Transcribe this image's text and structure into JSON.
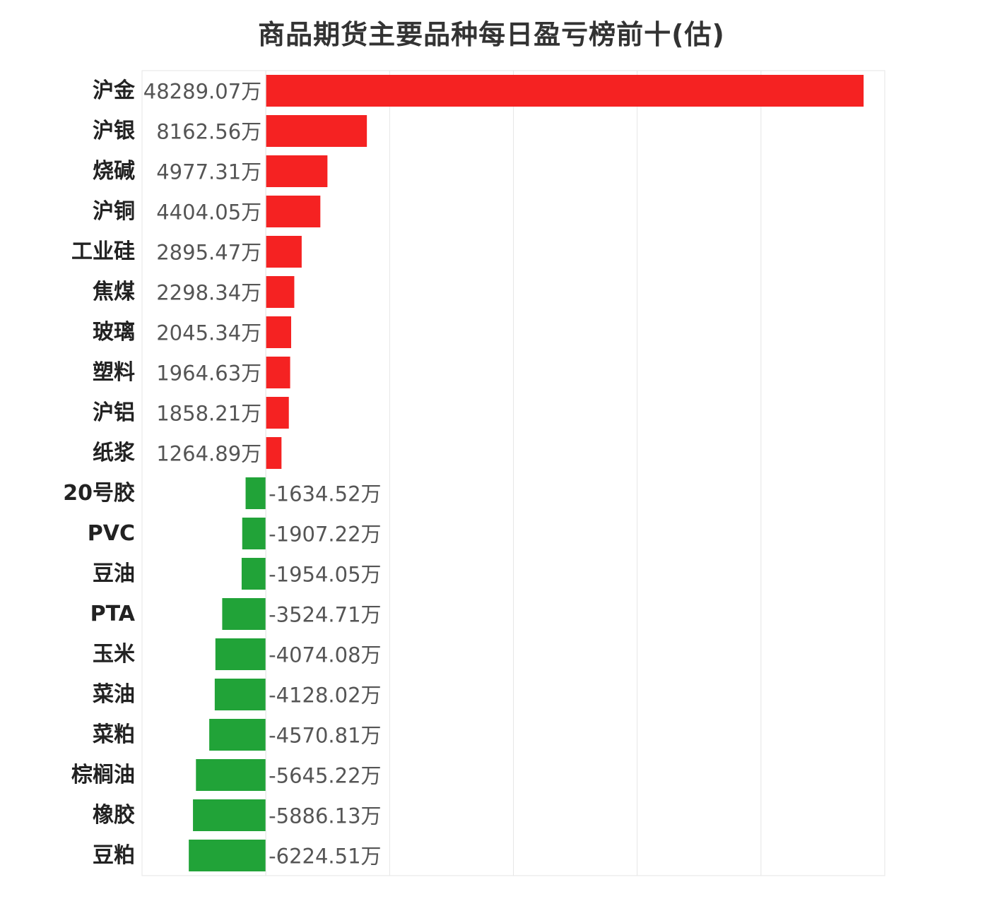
{
  "chart_data": {
    "type": "bar",
    "orientation": "horizontal",
    "title": "商品期货主要品种每日盈亏榜前十(估)",
    "unit": "万",
    "categories": [
      "沪金",
      "沪银",
      "烧碱",
      "沪铜",
      "工业硅",
      "焦煤",
      "玻璃",
      "塑料",
      "沪铝",
      "纸浆",
      "20号胶",
      "PVC",
      "豆油",
      "PTA",
      "玉米",
      "菜油",
      "菜粕",
      "棕榈油",
      "橡胶",
      "豆粕"
    ],
    "values": [
      48289.07,
      8162.56,
      4977.31,
      4404.05,
      2895.47,
      2298.34,
      2045.34,
      1964.63,
      1858.21,
      1264.89,
      -1634.52,
      -1907.22,
      -1954.05,
      -3524.71,
      -4074.08,
      -4128.02,
      -4570.81,
      -5645.22,
      -5886.13,
      -6224.51
    ],
    "labels": [
      "48289.07万",
      "8162.56万",
      "4977.31万",
      "4404.05万",
      "2895.47万",
      "2298.34万",
      "2045.34万",
      "1964.63万",
      "1858.21万",
      "1264.89万",
      "-1634.52万",
      "-1907.22万",
      "-1954.05万",
      "-3524.71万",
      "-4074.08万",
      "-4128.02万",
      "-4570.81万",
      "-5645.22万",
      "-5886.13万",
      "-6224.51万"
    ],
    "xlim": [
      -10000,
      50000
    ],
    "grid": true,
    "legend": "none",
    "colors": {
      "positive": "#f52222",
      "negative": "#21a338",
      "category_text": "#222222",
      "value_text": "#555555",
      "grid": "#e6e6e6"
    }
  }
}
